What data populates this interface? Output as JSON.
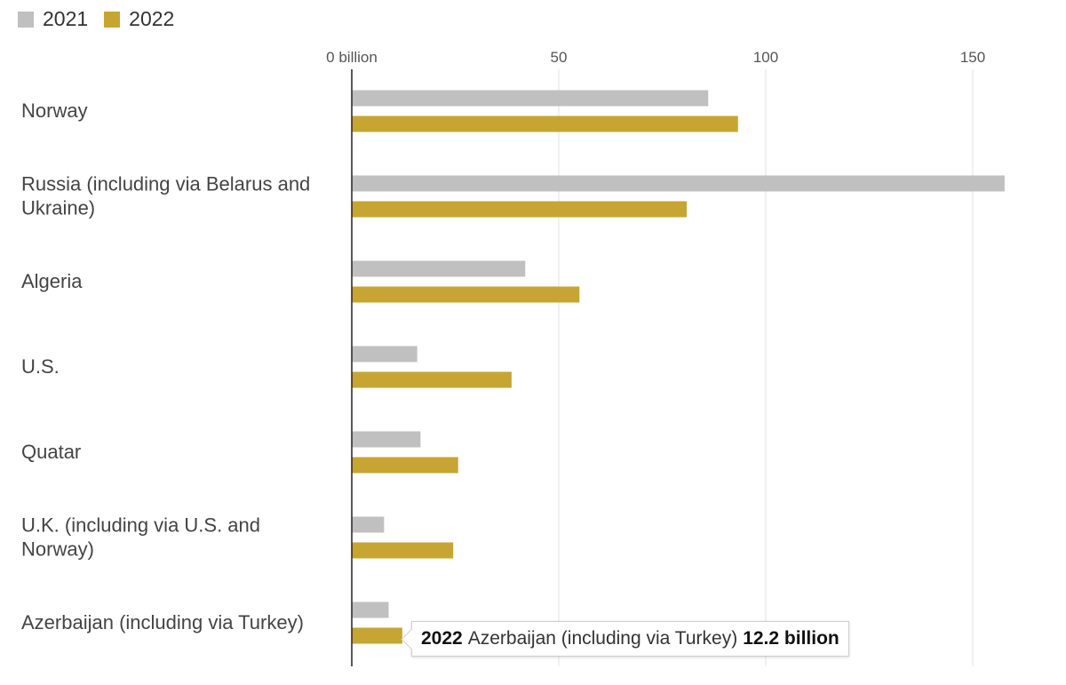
{
  "legend": {
    "items": [
      {
        "label": "2021",
        "color": "#c0c0c0"
      },
      {
        "label": "2022",
        "color": "#c6a532"
      }
    ]
  },
  "tooltip": {
    "year": "2022",
    "country": "Azerbaijan (including via Turkey)",
    "value": "12.2 billion"
  },
  "chart_data": {
    "type": "bar",
    "orientation": "horizontal",
    "xlim": [
      0,
      160
    ],
    "ticks": [
      {
        "value": 0,
        "label": "0 billion"
      },
      {
        "value": 50,
        "label": "50"
      },
      {
        "value": 100,
        "label": "100"
      },
      {
        "value": 150,
        "label": "150"
      }
    ],
    "grid": true,
    "legend_position": "top-left",
    "categories": [
      [
        "Norway"
      ],
      [
        "Russia (including via Belarus and",
        "Ukraine)"
      ],
      [
        "Algeria"
      ],
      [
        "U.S."
      ],
      [
        "Quatar"
      ],
      [
        "U.K. (including via U.S. and",
        "Norway)"
      ],
      [
        "Azerbaijan (including via Turkey)"
      ]
    ],
    "series": [
      {
        "name": "2021",
        "color": "#c0c0c0",
        "values": [
          86.1,
          157.7,
          41.9,
          15.8,
          16.6,
          7.8,
          8.9
        ]
      },
      {
        "name": "2022",
        "color": "#c6a532",
        "values": [
          93.3,
          80.9,
          55.0,
          38.6,
          25.7,
          24.5,
          12.2
        ]
      }
    ]
  }
}
